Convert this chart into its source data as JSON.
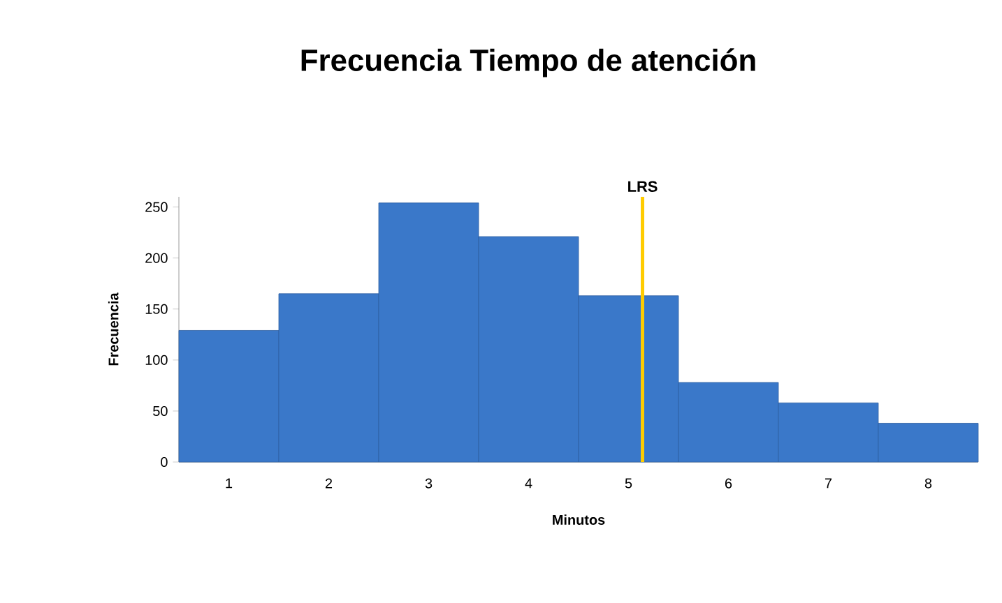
{
  "chart_data": {
    "type": "histogram",
    "title": "Frecuencia Tiempo de atención",
    "xlabel": "Minutos",
    "ylabel": "Frecuencia",
    "bins": [
      0.5,
      1.5,
      2.5,
      3.5,
      4.5,
      5.5,
      6.5,
      7.5,
      8.5
    ],
    "values": [
      129,
      165,
      254,
      221,
      163,
      78,
      58,
      38
    ],
    "color": "#3a78c9",
    "xlim": [
      0.5,
      8.5
    ],
    "xticks": [
      1,
      2,
      3,
      4,
      5,
      6,
      7,
      8
    ],
    "ylim": [
      0,
      260
    ],
    "yticks": [
      0,
      50,
      100,
      150,
      200,
      250
    ],
    "ref_lines": [
      {
        "axis": "x",
        "value": 5.14,
        "label": "LRS",
        "color": "#ffcc00"
      }
    ],
    "grid": false
  }
}
